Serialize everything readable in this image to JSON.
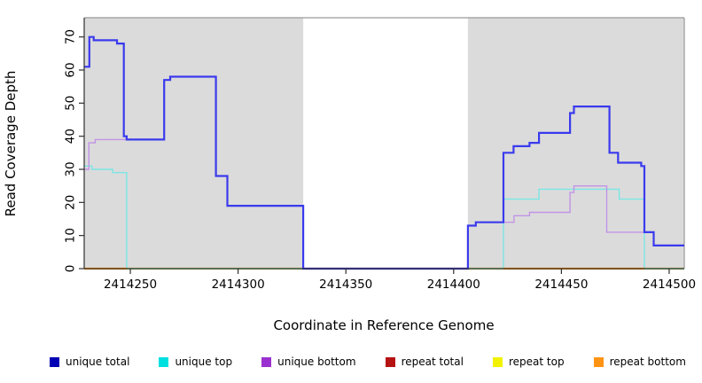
{
  "figure": {
    "background": "#FFFFFF",
    "panel_color": "#DBDBDB",
    "frame_color": "#999999",
    "axis_color": "#2F2F2F",
    "baseline_blend_color": "#9FD89F"
  },
  "chart_data": {
    "type": "line",
    "style": "step",
    "title": "",
    "xlabel": "Coordinate in Reference Genome",
    "ylabel": "Read Coverage Depth",
    "xlim": [
      2414228.6,
      2414507
    ],
    "ylim": [
      0,
      75.8
    ],
    "x_ticks": [
      2414250,
      2414300,
      2414350,
      2414400,
      2414450,
      2414500
    ],
    "y_ticks": [
      0,
      10,
      20,
      30,
      40,
      50,
      60,
      70
    ],
    "grid": "off",
    "legend_position": "bottom",
    "shaded_panels": [
      {
        "from": 2414228.6,
        "to": 2414330.2
      },
      {
        "from": 2414406.6,
        "to": 2414507
      }
    ],
    "baseline_blend_segments": [
      {
        "from": 2414248.3,
        "to": 2414423.1
      },
      {
        "from": 2414488.5,
        "to": 2414507
      }
    ],
    "series": [
      {
        "name": "unique total",
        "line_color": "#3A3AEE",
        "swatch_color": "#0000B4",
        "width": 2.2,
        "segments": [
          [
            2414228.6,
            2414231,
            61
          ],
          [
            2414231,
            2414233,
            70
          ],
          [
            2414233,
            2414243.8,
            69
          ],
          [
            2414243.8,
            2414247,
            68
          ],
          [
            2414247,
            2414248.3,
            40
          ],
          [
            2414248.3,
            2414265.7,
            39
          ],
          [
            2414265.7,
            2414268.5,
            57
          ],
          [
            2414268.5,
            2414289.7,
            58
          ],
          [
            2414289.7,
            2414295,
            28
          ],
          [
            2414295,
            2414330.2,
            19
          ],
          [
            2414330.2,
            2414406.6,
            0
          ],
          [
            2414406.6,
            2414410.3,
            13
          ],
          [
            2414410.3,
            2414423.1,
            14
          ],
          [
            2414423.1,
            2414427.8,
            35
          ],
          [
            2414427.8,
            2414435.2,
            37
          ],
          [
            2414435.2,
            2414439.6,
            38
          ],
          [
            2414439.6,
            2414454,
            41
          ],
          [
            2414454,
            2414455.8,
            47
          ],
          [
            2414455.8,
            2414472.3,
            49
          ],
          [
            2414472.3,
            2414476.3,
            35
          ],
          [
            2414476.3,
            2414487,
            32
          ],
          [
            2414487,
            2414488.5,
            31
          ],
          [
            2414488.5,
            2414492.8,
            11
          ],
          [
            2414492.8,
            2414507,
            7
          ]
        ]
      },
      {
        "name": "unique top",
        "line_color": "#7BE6E6",
        "swatch_color": "#00E0E0",
        "width": 1.4,
        "segments": [
          [
            2414228.6,
            2414232.2,
            31
          ],
          [
            2414232.2,
            2414241.8,
            30
          ],
          [
            2414241.8,
            2414248.3,
            29
          ],
          [
            2414248.3,
            2414423.1,
            0
          ],
          [
            2414423.1,
            2414439.6,
            21
          ],
          [
            2414439.6,
            2414476.8,
            24
          ],
          [
            2414476.8,
            2414488.5,
            21
          ],
          [
            2414488.5,
            2414507,
            0
          ]
        ]
      },
      {
        "name": "unique bottom",
        "line_color": "#C193E6",
        "swatch_color": "#9B30D0",
        "width": 1.4,
        "segments": [
          [
            2414228.6,
            2414230.8,
            30
          ],
          [
            2414230.8,
            2414233.7,
            38
          ],
          [
            2414233.7,
            2414265.7,
            39
          ],
          [
            2414265.7,
            2414268.5,
            57
          ],
          [
            2414268.5,
            2414289.7,
            58
          ],
          [
            2414289.7,
            2414295,
            28
          ],
          [
            2414295,
            2414330.2,
            19
          ],
          [
            2414330.2,
            2414406.6,
            0
          ],
          [
            2414406.6,
            2414410.3,
            13
          ],
          [
            2414410.3,
            2414428,
            14
          ],
          [
            2414428,
            2414435.2,
            16
          ],
          [
            2414435.2,
            2414454,
            17
          ],
          [
            2414454,
            2414455.8,
            23
          ],
          [
            2414455.8,
            2414471,
            25
          ],
          [
            2414471,
            2414492.8,
            11
          ],
          [
            2414492.8,
            2414507,
            7
          ]
        ]
      },
      {
        "name": "repeat total",
        "line_color": "#C01010",
        "swatch_color": "#B51212",
        "width": 1.5,
        "segments": [
          [
            2414228.6,
            2414507,
            0
          ]
        ]
      },
      {
        "name": "repeat top",
        "line_color": "#F2F200",
        "swatch_color": "#F2F200",
        "width": 1.5,
        "segments": [
          [
            2414228.6,
            2414507,
            0
          ]
        ]
      },
      {
        "name": "repeat bottom",
        "line_color": "#FF9414",
        "swatch_color": "#FF9414",
        "width": 2.2,
        "segments": [
          [
            2414228.6,
            2414507,
            0
          ]
        ]
      }
    ]
  }
}
